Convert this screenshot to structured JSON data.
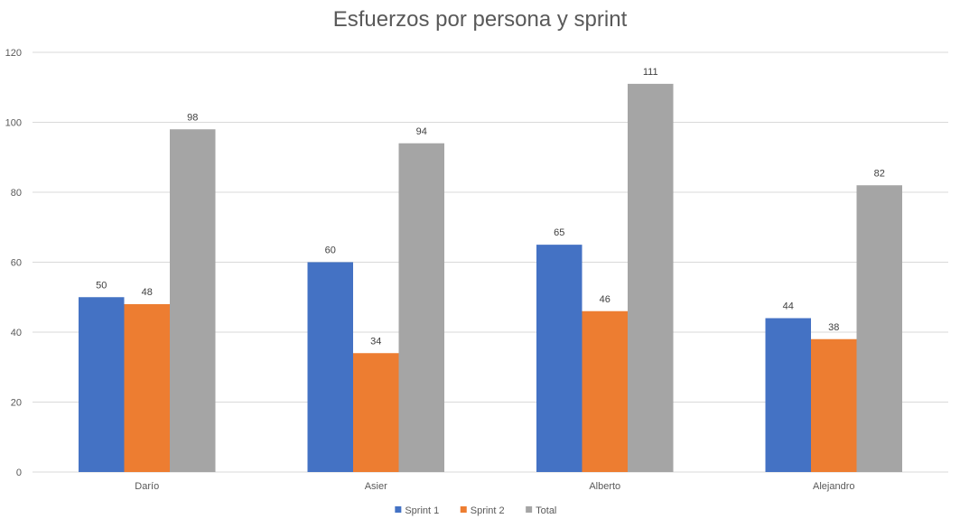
{
  "chart_data": {
    "type": "bar",
    "title": "Esfuerzos por persona y sprint",
    "xlabel": "",
    "ylabel": "",
    "categories": [
      "Darío",
      "Asier",
      "Alberto",
      "Alejandro"
    ],
    "series": [
      {
        "name": "Sprint 1",
        "color": "#4472c4",
        "values": [
          50,
          60,
          65,
          44
        ]
      },
      {
        "name": "Sprint 2",
        "color": "#ed7d31",
        "values": [
          48,
          34,
          46,
          38
        ]
      },
      {
        "name": "Total",
        "color": "#a5a5a5",
        "values": [
          98,
          94,
          111,
          82
        ]
      }
    ],
    "ylim": [
      0,
      120
    ],
    "yticks": [
      0,
      20,
      40,
      60,
      80,
      100,
      120
    ],
    "grid": true,
    "legend_position": "bottom",
    "data_labels": true
  }
}
